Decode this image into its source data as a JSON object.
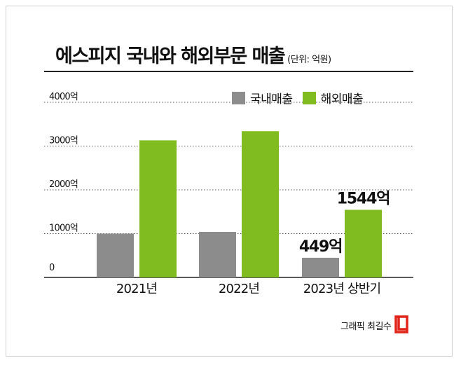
{
  "title": "에스피지 국내와 해외부문 매출",
  "unit": "(단위: 억원)",
  "credit": "그래픽 최길수",
  "chart_data": {
    "type": "bar",
    "title": "에스피지 국내와 해외부문 매출",
    "unit": "(단위: 억원)",
    "categories": [
      "2021년",
      "2022년",
      "2023년 상반기"
    ],
    "series": [
      {
        "name": "국내매출",
        "color": "#8c8c8c",
        "values": [
          1000,
          1040,
          449
        ]
      },
      {
        "name": "해외매출",
        "color": "#80bc1f",
        "values": [
          3130,
          3340,
          1544
        ]
      }
    ],
    "data_labels": [
      {
        "series": 0,
        "index": 2,
        "text": "449억"
      },
      {
        "series": 1,
        "index": 2,
        "text": "1544억"
      }
    ],
    "yticks": [
      {
        "value": 0,
        "label": "0"
      },
      {
        "value": 1000,
        "label": "1000억"
      },
      {
        "value": 2000,
        "label": "2000억"
      },
      {
        "value": 3000,
        "label": "3000억"
      },
      {
        "value": 4000,
        "label": "4000억"
      }
    ],
    "ylim": [
      0,
      4000
    ],
    "legend_position": "top-right",
    "grid": true
  }
}
